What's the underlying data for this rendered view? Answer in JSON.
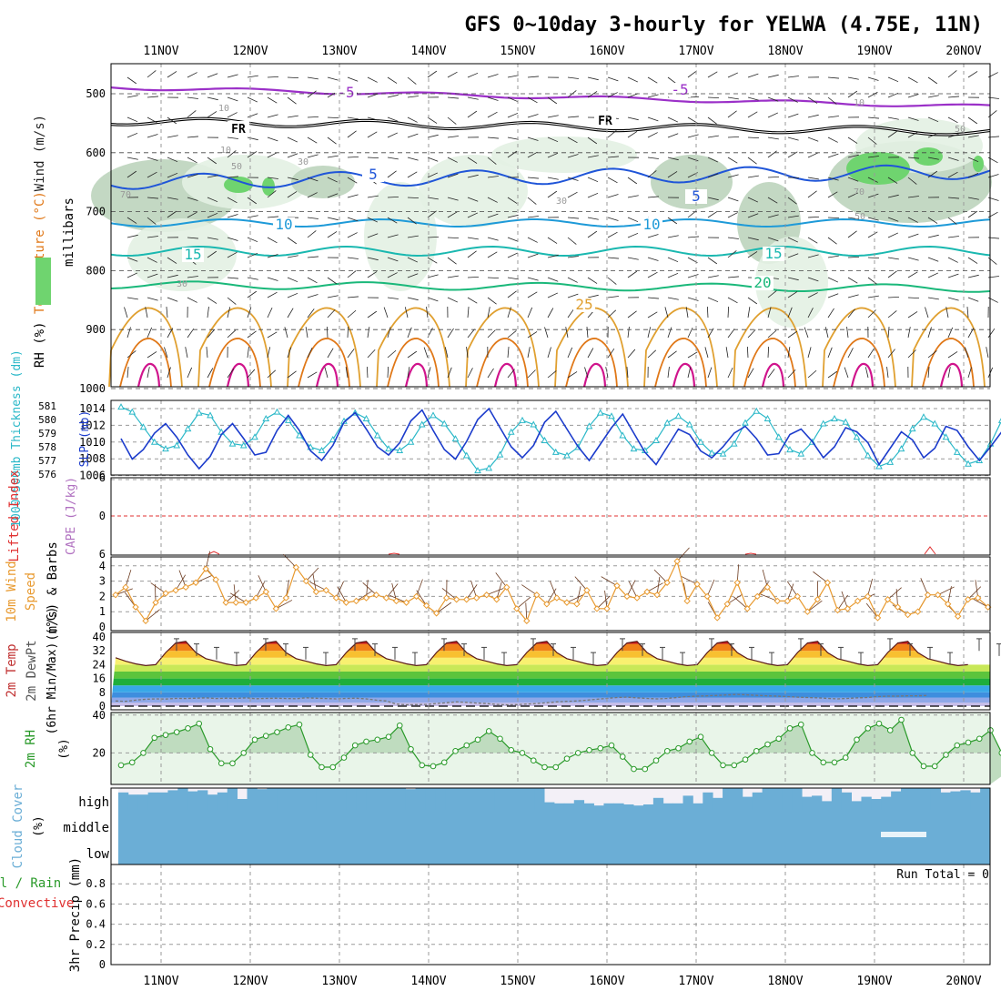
{
  "title": "GFS 0~10day 3-hourly for YELWA (4.75E, 11N)",
  "dates": [
    "11NOV",
    "12NOV",
    "13NOV",
    "14NOV",
    "15NOV",
    "16NOV",
    "17NOV",
    "18NOV",
    "19NOV",
    "20NOV"
  ],
  "colors": {
    "grid": "#9a9a9a",
    "rh_light": "#e3f1e3",
    "rh_mid": "#bcd4bc",
    "rh_dark": "#6fd46f",
    "temp_purple": "#9b30c8",
    "temp_blue": "#1f55d8",
    "temp_lightblue": "#1e9ad8",
    "temp_cyan": "#1ab8b0",
    "temp_green": "#1ab87a",
    "temp_orange": "#e0a030",
    "temp_darkorange": "#e07818",
    "temp_magenta": "#d0148c",
    "slp": "#2ab8c8",
    "thickness": "#1c3ccc",
    "wind10": "#e89a30",
    "rh2m": "#2a9a2a",
    "cloud": "#6baed6"
  },
  "chart_data": [
    {
      "type": "contour",
      "panel": "upper-air",
      "ylabel": "millibars",
      "ylabel_parts": [
        "RH (%)",
        "Temperature (°C)",
        "Wind (m/s)"
      ],
      "y_ticks": [
        "500",
        "600",
        "700",
        "800",
        "900",
        "1000"
      ],
      "ylim": [
        1000,
        450
      ],
      "contour_labels": {
        "temperature": [
          "-5",
          "-5",
          "FR",
          "FR",
          "5",
          "5",
          "10",
          "10",
          "15",
          "15",
          "20",
          "25"
        ],
        "rh": [
          "10",
          "10",
          "10",
          "30",
          "30",
          "30",
          "50",
          "50",
          "50",
          "70",
          "70"
        ]
      }
    },
    {
      "type": "line",
      "panel": "slp-thickness",
      "ylabel_left": "1000~500mb Thickness (dm)",
      "ylabel_right": "SLP (mb)",
      "thickness_ticks": [
        "581",
        "580",
        "579",
        "578",
        "577",
        "576"
      ],
      "slp_ticks": [
        "1014",
        "1012",
        "1010",
        "1008",
        "1006"
      ],
      "series": [
        {
          "name": "SLP (mb)",
          "values": [
            1014.2,
            1013.6,
            1011.8,
            1010.0,
            1009.2,
            1009.6,
            1011.6,
            1013.5,
            1013.2,
            1011.2,
            1009.8,
            1009.6,
            1010.6,
            1012.8,
            1013.6,
            1012.6,
            1010.8,
            1009.4,
            1009.0,
            1010.3,
            1012.5,
            1013.5,
            1012.8,
            1010.8,
            1009.2,
            1009.0,
            1010.0,
            1012.1,
            1013.2,
            1012.2,
            1010.4,
            1008.4,
            1006.6,
            1006.9,
            1008.5,
            1011.2,
            1012.6,
            1012.1,
            1010.2,
            1008.8,
            1008.4,
            1009.4,
            1011.9,
            1013.5,
            1013.1,
            1010.8,
            1009.2,
            1009.0,
            1010.2,
            1012.3,
            1013.1,
            1012.1,
            1010.0,
            1008.7,
            1008.6,
            1009.8,
            1012.3,
            1013.7,
            1012.8,
            1010.6,
            1009.1,
            1008.6,
            1010.0,
            1012.2,
            1012.8,
            1012.4,
            1010.6,
            1008.4,
            1007.1,
            1007.6,
            1009.2,
            1011.6,
            1013.0,
            1012.2,
            1010.6,
            1008.8,
            1007.4,
            1007.8,
            1009.8,
            1012.6,
            1013.3,
            1011.2
          ]
        },
        {
          "name": "Thickness (dm)",
          "values": [
            578.6,
            577.1,
            577.8,
            579.0,
            579.7,
            578.7,
            577.4,
            576.4,
            577.3,
            578.9,
            579.7,
            578.6,
            577.4,
            577.6,
            579.2,
            580.3,
            579.2,
            577.7,
            577.0,
            578.1,
            579.8,
            580.5,
            579.3,
            578.0,
            577.4,
            578.3,
            579.9,
            580.7,
            579.2,
            577.8,
            577.1,
            578.4,
            580.0,
            580.8,
            579.4,
            578.0,
            577.2,
            578.1,
            579.8,
            580.6,
            579.3,
            578.0,
            577.0,
            578.2,
            579.4,
            580.4,
            579.0,
            577.6,
            576.7,
            578.0,
            579.3,
            578.9,
            577.7,
            577.2,
            578.0,
            579.0,
            579.5,
            578.6,
            577.4,
            577.5,
            578.9,
            579.3,
            578.4,
            577.2,
            578.0,
            579.4,
            579.1,
            578.3,
            576.7,
            577.9,
            579.1,
            578.5,
            577.2,
            577.9,
            579.5,
            579.2,
            578.0,
            577.0,
            578.0,
            579.1,
            578.6
          ]
        }
      ]
    },
    {
      "type": "line",
      "panel": "stability",
      "ylabel_left": "Lifted Index",
      "ylabel_right": "CAPE (J/kg)",
      "y_ticks": [
        "-6",
        "0",
        "6"
      ],
      "ylim": [
        6,
        -6
      ],
      "lifted_index_zero_line": 0
    },
    {
      "type": "line",
      "panel": "wind10m",
      "ylabel": "10m Wind Speed (m/s) & Barbs",
      "y_ticks": [
        "4",
        "3",
        "2",
        "1",
        "0"
      ],
      "ylim": [
        0,
        4.6
      ],
      "series": [
        {
          "name": "10m Wind Speed",
          "values": [
            2.1,
            2.6,
            1.3,
            0.4,
            1.6,
            2.2,
            2.4,
            2.6,
            2.9,
            3.8,
            3.1,
            1.6,
            1.6,
            1.6,
            1.9,
            2.3,
            1.2,
            1.9,
            3.9,
            3.0,
            2.3,
            2.4,
            1.9,
            1.6,
            1.7,
            1.9,
            2.1,
            1.9,
            1.7,
            1.6,
            2.0,
            1.4,
            0.9,
            1.9,
            1.8,
            1.8,
            1.9,
            2.1,
            1.8,
            2.6,
            1.2,
            0.4,
            2.1,
            1.5,
            1.9,
            1.6,
            1.5,
            2.4,
            1.2,
            1.2,
            2.7,
            2.0,
            1.9,
            2.3,
            2.1,
            2.9,
            4.3,
            1.7,
            2.8,
            2.0,
            0.6,
            1.5,
            2.9,
            1.2,
            2.0,
            2.6,
            1.7,
            1.7,
            2.0,
            1.0,
            1.8,
            2.9,
            1.1,
            1.2,
            1.7,
            2.0,
            0.6,
            1.8,
            1.3,
            0.8,
            1.0,
            2.1,
            2.1,
            1.5,
            0.7,
            1.8,
            1.9,
            1.3
          ]
        }
      ]
    },
    {
      "type": "area",
      "panel": "temperature2m",
      "ylabel": "2m Temp 2m DewPt (6hr Min/Max) (°C)",
      "y_ticks": [
        "40",
        "32",
        "24",
        "16",
        "8",
        "0"
      ],
      "ylim": [
        0,
        40
      ],
      "series": [
        {
          "name": "2m Temp",
          "values": [
            28.0,
            26.0,
            24.5,
            23.5,
            24.0,
            31.0,
            36.5,
            37.5,
            31.0,
            27.5,
            26.0,
            24.5,
            23.5,
            24.0,
            31.0,
            36.5,
            37.5,
            31.0,
            27.5,
            26.0,
            24.5,
            23.5,
            24.0,
            31.0,
            36.5,
            37.5,
            31.0,
            27.5,
            26.0,
            24.5,
            23.5,
            24.0,
            31.0,
            36.5,
            37.5,
            31.0,
            27.5,
            26.0,
            24.5,
            23.5,
            24.0,
            31.0,
            36.5,
            37.5,
            31.0,
            27.5,
            26.0,
            24.5,
            23.5,
            24.0,
            31.0,
            36.5,
            37.5,
            31.0,
            27.5,
            26.0,
            24.5,
            23.5,
            24.0,
            31.0,
            36.5,
            37.5,
            31.0,
            27.5,
            26.0,
            24.5,
            23.5,
            24.0,
            31.0,
            36.5,
            37.5,
            31.0,
            27.5,
            26.0,
            24.5,
            23.5,
            24.0,
            31.0,
            36.5,
            37.5,
            31.0,
            27.5,
            26.0,
            24.5,
            23.5,
            24.0
          ]
        },
        {
          "name": "2m DewPt",
          "values": [
            3.0,
            2.8,
            3.5,
            4.0,
            4.2,
            4.1,
            4.5,
            4.4,
            4.6,
            4.8,
            4.4,
            4.6,
            4.5,
            4.8,
            4.3,
            4.5,
            4.6,
            4.4,
            4.3,
            4.8,
            4.6,
            4.4,
            4.2,
            4.5,
            4.6,
            4.2,
            3.5,
            3.0,
            1.2,
            0.8,
            0.9,
            1.0,
            1.5,
            2.0,
            2.5,
            2.2,
            1.8,
            1.5,
            1.0,
            0.8,
            0.9,
            1.2,
            1.5,
            2.0,
            2.5,
            2.8,
            3.0,
            3.5,
            4.0,
            4.5,
            5.0,
            5.2,
            4.8,
            4.5,
            4.2,
            4.5,
            5.0,
            5.5,
            5.8,
            6.0,
            6.2,
            6.5,
            6.8,
            6.5,
            6.2,
            6.0,
            5.8,
            5.5,
            5.2,
            5.0,
            4.8,
            4.5,
            4.2,
            4.5,
            4.8,
            5.0,
            5.5,
            5.8,
            5.8,
            6.0,
            6.0,
            6.2
          ]
        }
      ]
    },
    {
      "type": "line",
      "panel": "rh2m",
      "ylabel": "2m RH (%)",
      "y_ticks": [
        "40",
        "20"
      ],
      "ylim": [
        5,
        44
      ],
      "series": [
        {
          "name": "2m RH",
          "values": [
            13.5,
            15.0,
            20.0,
            28.0,
            29.5,
            31.0,
            33.0,
            35.5,
            22.0,
            14.5,
            14.5,
            20.0,
            27.0,
            29.0,
            31.0,
            33.5,
            35.0,
            19.0,
            12.5,
            12.5,
            17.5,
            24.0,
            26.0,
            27.0,
            28.5,
            34.5,
            22.0,
            13.5,
            13.0,
            15.0,
            21.0,
            24.0,
            27.0,
            31.5,
            27.5,
            21.5,
            20.0,
            16.0,
            12.5,
            12.5,
            17.0,
            20.0,
            21.5,
            22.5,
            24.0,
            18.0,
            11.5,
            11.5,
            16.0,
            21.0,
            22.5,
            26.0,
            28.5,
            20.0,
            13.5,
            13.5,
            16.5,
            21.0,
            24.5,
            27.5,
            33.0,
            35.0,
            20.0,
            15.0,
            15.0,
            17.5,
            27.0,
            33.0,
            35.5,
            32.0,
            37.5,
            20.0,
            13.0,
            13.0,
            19.0,
            24.0,
            25.5,
            27.5,
            32.0,
            20.0,
            12.5,
            12.5,
            17.5,
            25.0,
            30.0,
            31.0,
            37.0,
            41.0
          ]
        }
      ]
    },
    {
      "type": "heatmap",
      "panel": "cloud",
      "ylabel": "Cloud Cover (%)",
      "y_ticks": [
        "high",
        "middle",
        "low"
      ],
      "high_cloud_fraction": [
        0.8,
        0.7,
        0.7,
        0.8,
        0.8,
        0.9,
        1.0,
        0.85,
        0.9,
        0.7,
        0.8,
        1.0,
        0.5,
        1.0,
        0.95,
        1.0,
        1.0,
        1.0,
        1.0,
        1.0,
        1.0,
        1.0,
        1.0,
        1.0,
        1.0,
        1.0,
        1.0,
        1.0,
        1.0,
        0.95,
        1.0,
        1.0,
        1.0,
        1.0,
        1.0,
        1.0,
        1.0,
        1.0,
        1.0,
        1.0,
        1.0,
        1.0,
        1.0,
        0.35,
        0.3,
        0.3,
        0.45,
        0.3,
        0.2,
        0.3,
        0.3,
        0.25,
        0.2,
        0.25,
        0.55,
        0.3,
        0.3,
        0.65,
        0.3,
        0.8,
        0.55,
        1.0,
        1.0,
        0.6,
        0.8,
        1.0,
        1.0,
        1.0,
        1.0,
        0.6,
        0.65,
        0.4,
        1.0,
        0.8,
        0.4,
        0.6,
        0.5,
        0.6,
        0.85,
        1.0,
        1.0,
        1.0,
        1.0,
        0.8,
        0.85,
        0.9,
        0.8,
        1.0
      ]
    },
    {
      "type": "bar",
      "panel": "precip",
      "ylabel": "3hr Precip (mm)",
      "ylabel_left_parts": [
        "Total / Rain",
        "Convective"
      ],
      "y_ticks": [
        "0.8",
        "0.6",
        "0.4",
        "0.2",
        "0"
      ],
      "ylim": [
        0,
        0.9
      ],
      "run_total_label": "Run Total = 0",
      "values": []
    }
  ]
}
